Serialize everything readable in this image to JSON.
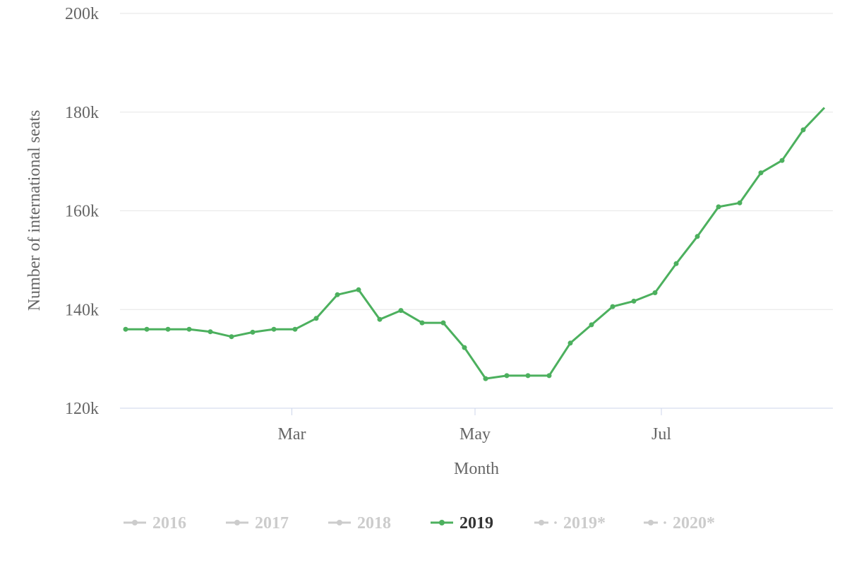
{
  "chart_data": {
    "type": "line",
    "title": "",
    "xlabel": "Month",
    "ylabel": "Number of international seats",
    "ylim": [
      120000,
      200000
    ],
    "y_ticks": [
      {
        "value": 120000,
        "label": "120k"
      },
      {
        "value": 140000,
        "label": "140k"
      },
      {
        "value": 160000,
        "label": "160k"
      },
      {
        "value": 180000,
        "label": "180k"
      },
      {
        "value": 200000,
        "label": "200k"
      }
    ],
    "x_ticks": [
      {
        "index": 7.85,
        "label": "Mar"
      },
      {
        "index": 16.5,
        "label": "May"
      },
      {
        "index": 25.3,
        "label": "Jul"
      }
    ],
    "x_count": 34,
    "grid": "horizontal",
    "legend_position": "bottom",
    "series": [
      {
        "name": "2019",
        "color": "#4cb05e",
        "visible": true,
        "values": [
          136000,
          136000,
          136000,
          136000,
          135500,
          134500,
          135400,
          136000,
          136000,
          138200,
          143000,
          144000,
          138000,
          139800,
          137300,
          137300,
          132300,
          126000,
          126600,
          126600,
          126600,
          133200,
          136900,
          140600,
          141700,
          143400,
          149300,
          154800,
          160800,
          161600,
          167700,
          170200,
          176400,
          180900
        ]
      }
    ],
    "legend": [
      {
        "label": "2016",
        "style": "solid",
        "active": false
      },
      {
        "label": "2017",
        "style": "solid",
        "active": false
      },
      {
        "label": "2018",
        "style": "solid",
        "active": false
      },
      {
        "label": "2019",
        "style": "solid",
        "active": true
      },
      {
        "label": "2019*",
        "style": "dashed",
        "active": false
      },
      {
        "label": "2020*",
        "style": "dashed",
        "active": false
      }
    ],
    "colors": {
      "active_series": "#4cb05e",
      "inactive_legend": "#cccccc",
      "active_legend_text": "#333333",
      "grid": "#e6e6e6",
      "axis": "#ccd6eb"
    }
  }
}
